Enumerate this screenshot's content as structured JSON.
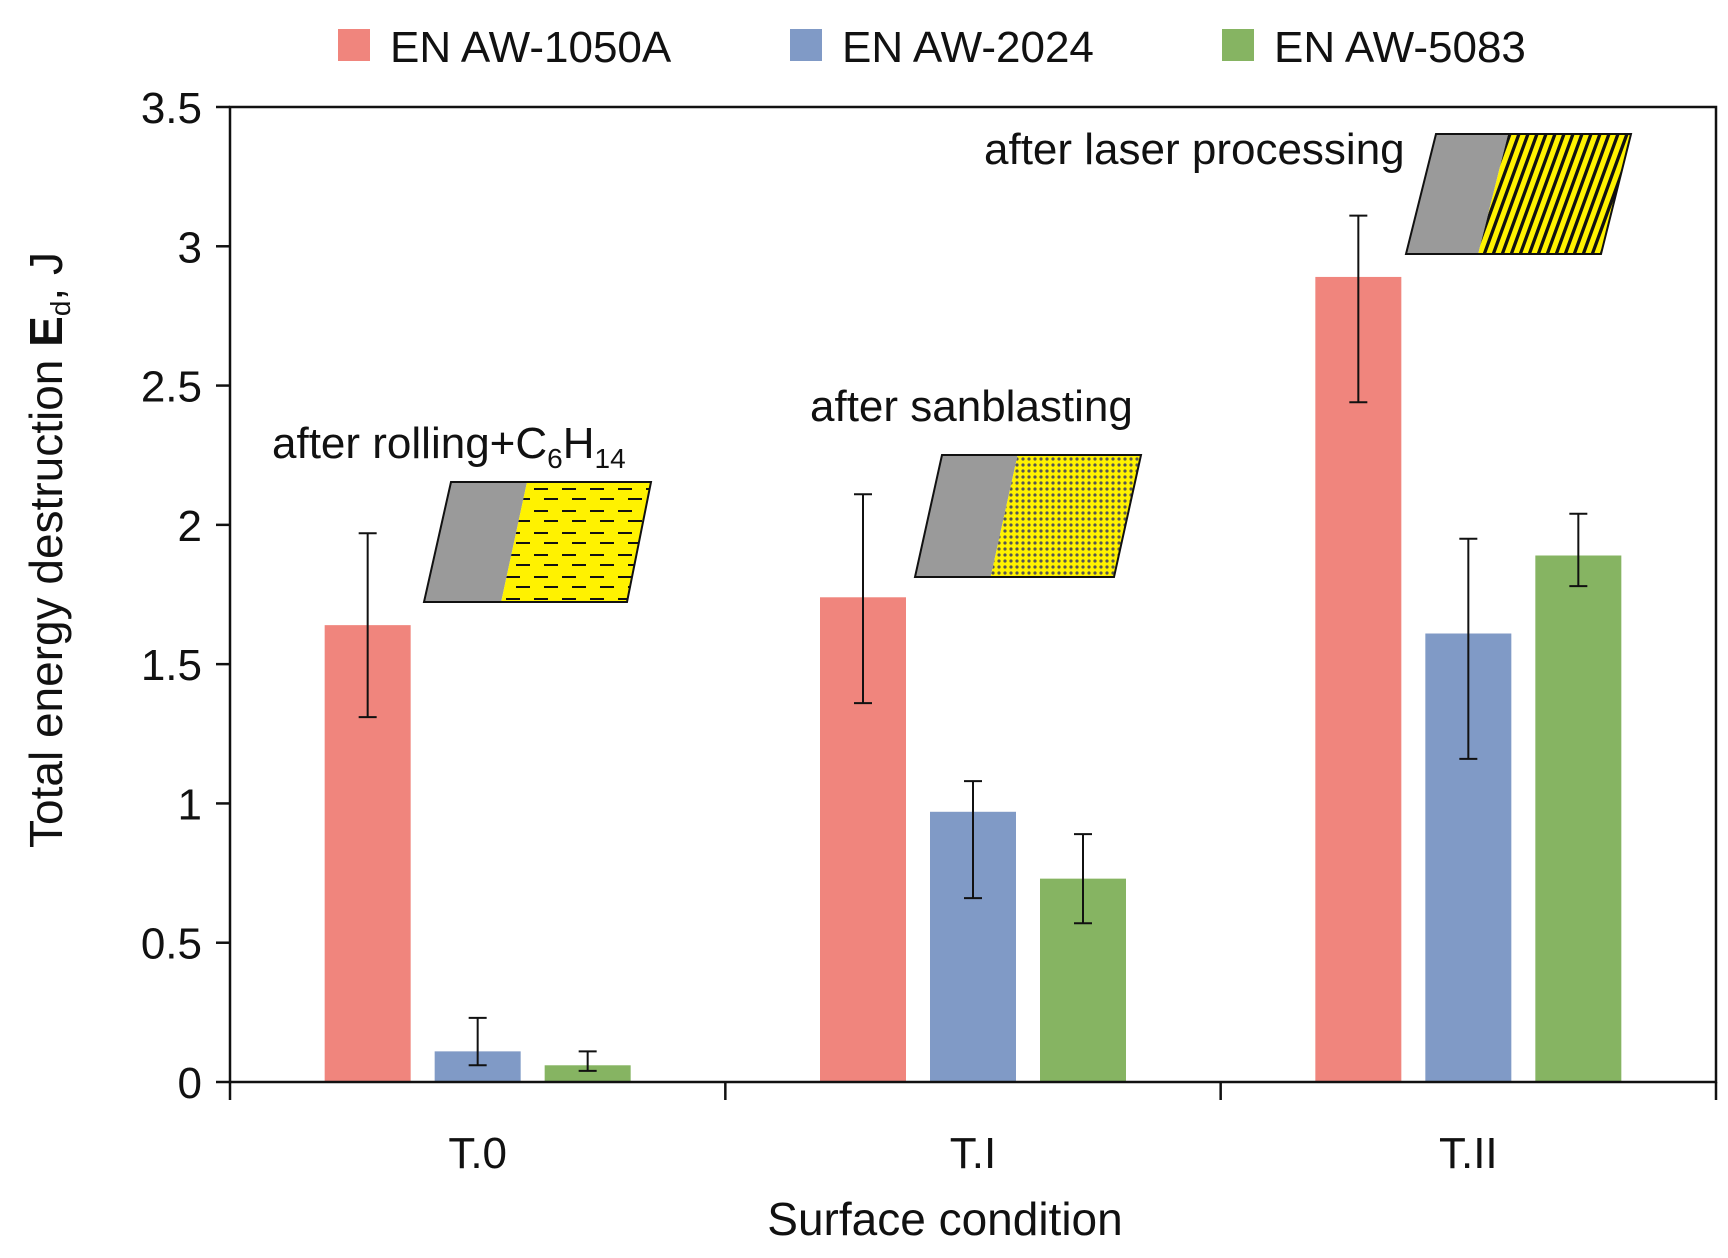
{
  "chart_data": {
    "type": "bar",
    "categories": [
      "T.0",
      "T.I",
      "T.II"
    ],
    "series": [
      {
        "name": "EN AW-1050A",
        "color": "#f0857d",
        "values": [
          1.64,
          1.74,
          2.89
        ],
        "errors": [
          [
            1.31,
            1.97
          ],
          [
            1.36,
            2.11
          ],
          [
            2.44,
            3.11
          ]
        ]
      },
      {
        "name": "EN AW-2024",
        "color": "#809ac6",
        "values": [
          0.11,
          0.97,
          1.61
        ],
        "errors": [
          [
            0.06,
            0.23
          ],
          [
            0.66,
            1.08
          ],
          [
            1.16,
            1.95
          ]
        ]
      },
      {
        "name": "EN AW-5083",
        "color": "#86b462",
        "values": [
          0.06,
          0.73,
          1.89
        ],
        "errors": [
          [
            0.04,
            0.11
          ],
          [
            0.57,
            0.89
          ],
          [
            1.78,
            2.04
          ]
        ]
      }
    ],
    "ylim": [
      0,
      3.5
    ],
    "yticks": [
      "0",
      "0.5",
      "1",
      "1.5",
      "2",
      "2.5",
      "3",
      "3.5"
    ],
    "xlabel": "Surface condition",
    "ylabel": {
      "before": "Total energy destruction ",
      "bold": "E",
      "sub": "d",
      "after": ", J"
    },
    "legend_position": "top",
    "grid": false,
    "annotations": [
      {
        "parts": [
          "after rolling+C",
          "6",
          "H",
          "14"
        ],
        "category": "T.0",
        "icon": "rolled-surface-icon"
      },
      {
        "parts": [
          "after sanblasting"
        ],
        "category": "T.I",
        "icon": "sandblasted-surface-icon"
      },
      {
        "parts": [
          "after laser processing"
        ],
        "category": "T.II",
        "icon": "laser-processed-surface-icon"
      }
    ]
  }
}
